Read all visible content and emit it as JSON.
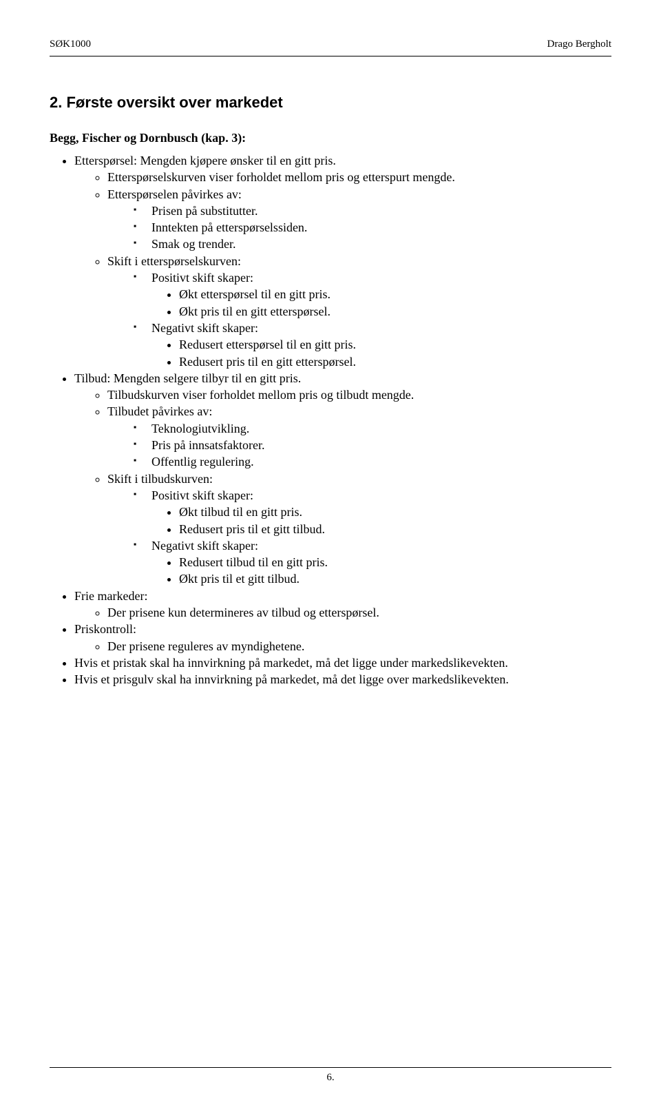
{
  "header": {
    "left": "SØK1000",
    "right": "Drago Bergholt"
  },
  "section_title": "2. Første oversikt over markedet",
  "sub_title": "Begg, Fischer og Dornbusch (kap. 3):",
  "items": [
    {
      "text": "Etterspørsel: Mengden kjøpere ønsker til en gitt pris.",
      "children": [
        {
          "text": "Etterspørselskurven viser forholdet mellom pris og etterspurt mengde."
        },
        {
          "text": "Etterspørselen påvirkes av:",
          "children": [
            {
              "text": "Prisen på substitutter."
            },
            {
              "text": "Inntekten på etterspørselssiden."
            },
            {
              "text": "Smak og trender."
            }
          ]
        },
        {
          "text": "Skift i etterspørselskurven:",
          "children": [
            {
              "text": "Positivt skift skaper:",
              "children": [
                {
                  "text": "Økt etterspørsel til en gitt pris."
                },
                {
                  "text": "Økt pris til en gitt etterspørsel."
                }
              ]
            },
            {
              "text": "Negativt skift skaper:",
              "children": [
                {
                  "text": "Redusert etterspørsel til en gitt pris."
                },
                {
                  "text": "Redusert pris til en gitt etterspørsel."
                }
              ]
            }
          ]
        }
      ]
    },
    {
      "text": "Tilbud: Mengden selgere tilbyr til en gitt pris.",
      "children": [
        {
          "text": "Tilbudskurven viser forholdet mellom pris og tilbudt mengde."
        },
        {
          "text": "Tilbudet påvirkes av:",
          "children": [
            {
              "text": "Teknologiutvikling."
            },
            {
              "text": "Pris på innsatsfaktorer."
            },
            {
              "text": "Offentlig regulering."
            }
          ]
        },
        {
          "text": "Skift i tilbudskurven:",
          "children": [
            {
              "text": "Positivt skift skaper:",
              "children": [
                {
                  "text": "Økt tilbud til en gitt pris."
                },
                {
                  "text": "Redusert pris til et gitt tilbud."
                }
              ]
            },
            {
              "text": "Negativt skift skaper:",
              "children": [
                {
                  "text": "Redusert tilbud til en gitt pris."
                },
                {
                  "text": "Økt pris til et gitt tilbud."
                }
              ]
            }
          ]
        }
      ]
    },
    {
      "text": "Frie markeder:",
      "children": [
        {
          "text": "Der prisene kun determineres av tilbud og etterspørsel."
        }
      ]
    },
    {
      "text": "Priskontroll:",
      "children": [
        {
          "text": "Der prisene reguleres av myndighetene."
        }
      ]
    },
    {
      "text": "Hvis et pristak skal ha innvirkning på markedet, må det ligge under markedslikevekten."
    },
    {
      "text": "Hvis et prisgulv skal ha innvirkning på markedet, må det ligge over markedslikevekten."
    }
  ],
  "footer": {
    "page_number": "6."
  }
}
